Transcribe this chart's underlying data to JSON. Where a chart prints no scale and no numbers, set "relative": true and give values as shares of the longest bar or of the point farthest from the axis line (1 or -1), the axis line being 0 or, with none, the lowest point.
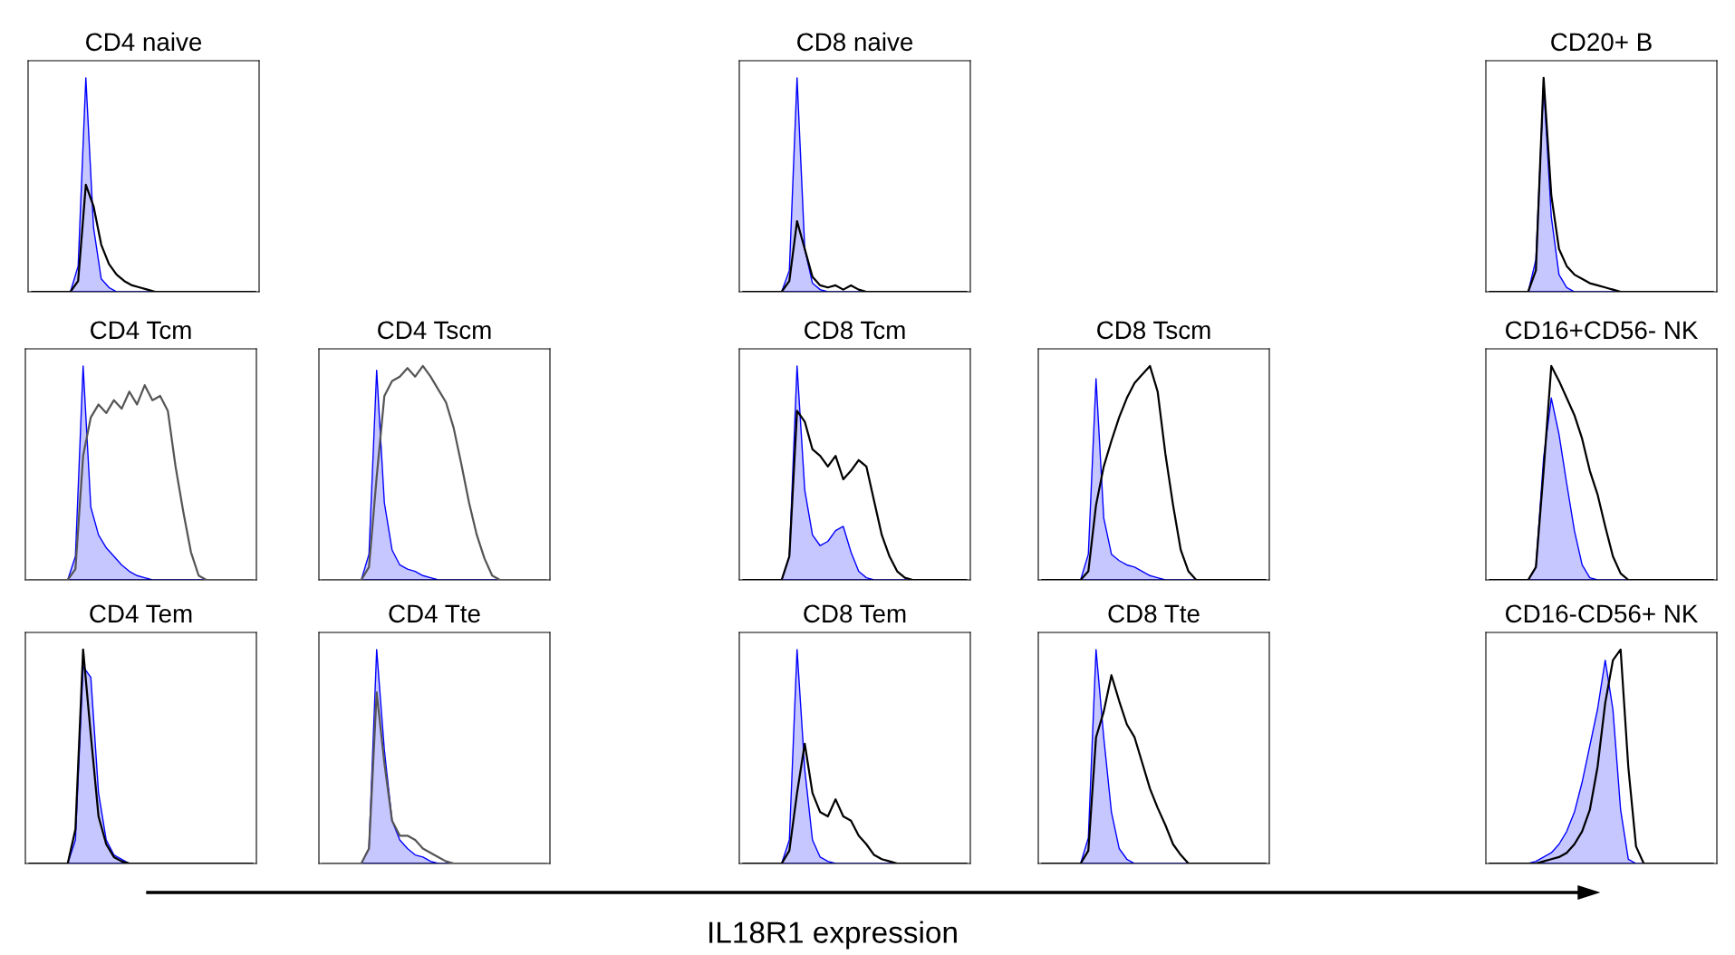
{
  "chart_data": [
    {
      "type": "line",
      "title": "CD4 naive",
      "relative": true,
      "tick_labels": false,
      "categories": [
        null,
        null,
        null,
        null,
        null,
        null,
        null,
        null,
        null,
        null,
        null,
        null,
        null,
        null,
        null,
        null,
        null,
        null,
        null,
        null,
        null,
        null,
        null,
        null,
        null,
        null,
        null,
        null,
        null,
        null
      ],
      "series": [
        {
          "type": "area",
          "color": "#0000ff",
          "values": [
            0,
            0,
            0,
            0,
            0,
            0,
            0.12,
            1.0,
            0.3,
            0.06,
            0.02,
            0,
            0,
            0,
            0,
            0,
            0,
            0,
            0,
            0,
            0,
            0,
            0,
            0,
            0,
            0,
            0,
            0,
            0,
            0
          ]
        },
        {
          "color": "#000000",
          "values": [
            0,
            0,
            0,
            0,
            0,
            0,
            0.05,
            0.5,
            0.4,
            0.22,
            0.13,
            0.08,
            0.05,
            0.03,
            0.02,
            0.01,
            0,
            0,
            0,
            0,
            0,
            0,
            0,
            0,
            0,
            0,
            0,
            0,
            0,
            0
          ]
        }
      ]
    },
    {
      "type": "line",
      "title": "CD8 naive",
      "relative": true,
      "tick_labels": false,
      "categories": [
        null,
        null,
        null,
        null,
        null,
        null,
        null,
        null,
        null,
        null,
        null,
        null,
        null,
        null,
        null,
        null,
        null,
        null,
        null,
        null,
        null,
        null,
        null,
        null,
        null,
        null,
        null,
        null,
        null,
        null
      ],
      "series": [
        {
          "type": "area",
          "color": "#0000ff",
          "values": [
            0,
            0,
            0,
            0,
            0,
            0,
            0.1,
            1.0,
            0.2,
            0.04,
            0.01,
            0,
            0,
            0,
            0,
            0,
            0,
            0,
            0,
            0,
            0,
            0,
            0,
            0,
            0,
            0,
            0,
            0,
            0,
            0
          ]
        },
        {
          "color": "#000000",
          "values": [
            0,
            0,
            0,
            0,
            0,
            0,
            0.05,
            0.33,
            0.2,
            0.07,
            0.03,
            0.02,
            0.03,
            0.01,
            0.03,
            0.01,
            0,
            0,
            0,
            0,
            0,
            0,
            0,
            0,
            0,
            0,
            0,
            0,
            0,
            0
          ]
        }
      ]
    },
    {
      "type": "line",
      "title": "CD20+ B",
      "relative": true,
      "tick_labels": false,
      "categories": [
        null,
        null,
        null,
        null,
        null,
        null,
        null,
        null,
        null,
        null,
        null,
        null,
        null,
        null,
        null,
        null,
        null,
        null,
        null,
        null,
        null,
        null,
        null,
        null,
        null,
        null,
        null,
        null,
        null,
        null
      ],
      "series": [
        {
          "type": "area",
          "color": "#0000ff",
          "values": [
            0,
            0,
            0,
            0,
            0,
            0,
            0.15,
            0.97,
            0.35,
            0.08,
            0.02,
            0,
            0,
            0,
            0,
            0,
            0,
            0,
            0,
            0,
            0,
            0,
            0,
            0,
            0,
            0,
            0,
            0,
            0,
            0
          ]
        },
        {
          "color": "#000000",
          "values": [
            0,
            0,
            0,
            0,
            0,
            0,
            0.1,
            1.0,
            0.45,
            0.2,
            0.12,
            0.08,
            0.06,
            0.04,
            0.03,
            0.02,
            0.01,
            0,
            0,
            0,
            0,
            0,
            0,
            0,
            0,
            0,
            0,
            0,
            0,
            0
          ]
        }
      ]
    },
    {
      "type": "line",
      "title": "CD4 Tcm",
      "relative": true,
      "tick_labels": false,
      "categories": [
        null,
        null,
        null,
        null,
        null,
        null,
        null,
        null,
        null,
        null,
        null,
        null,
        null,
        null,
        null,
        null,
        null,
        null,
        null,
        null,
        null,
        null,
        null,
        null,
        null,
        null,
        null,
        null,
        null,
        null
      ],
      "series": [
        {
          "type": "area",
          "color": "#0000ff",
          "values": [
            0,
            0,
            0,
            0,
            0,
            0,
            0.11,
            1.0,
            0.34,
            0.21,
            0.15,
            0.11,
            0.07,
            0.04,
            0.02,
            0.01,
            0,
            0,
            0,
            0,
            0,
            0,
            0,
            0,
            0,
            0,
            0,
            0,
            0,
            0
          ]
        },
        {
          "color": "#555555",
          "values": [
            0,
            0,
            0,
            0,
            0,
            0,
            0.05,
            0.58,
            0.76,
            0.82,
            0.78,
            0.84,
            0.8,
            0.88,
            0.82,
            0.91,
            0.84,
            0.86,
            0.79,
            0.53,
            0.32,
            0.13,
            0.02,
            0,
            0,
            0,
            0,
            0,
            0,
            0
          ]
        }
      ]
    },
    {
      "type": "line",
      "title": "CD4 Tscm",
      "relative": true,
      "tick_labels": false,
      "categories": [
        null,
        null,
        null,
        null,
        null,
        null,
        null,
        null,
        null,
        null,
        null,
        null,
        null,
        null,
        null,
        null,
        null,
        null,
        null,
        null,
        null,
        null,
        null,
        null,
        null,
        null,
        null,
        null,
        null,
        null
      ],
      "series": [
        {
          "type": "area",
          "color": "#0000ff",
          "values": [
            0,
            0,
            0,
            0,
            0,
            0,
            0.12,
            0.98,
            0.36,
            0.14,
            0.07,
            0.05,
            0.04,
            0.02,
            0.01,
            0,
            0,
            0,
            0,
            0,
            0,
            0,
            0,
            0,
            0,
            0,
            0,
            0,
            0,
            0
          ]
        },
        {
          "color": "#555555",
          "values": [
            0,
            0,
            0,
            0,
            0,
            0,
            0.06,
            0.48,
            0.86,
            0.93,
            0.95,
            0.99,
            0.95,
            1.0,
            0.95,
            0.89,
            0.83,
            0.71,
            0.54,
            0.36,
            0.21,
            0.1,
            0.02,
            0,
            0,
            0,
            0,
            0,
            0,
            0
          ]
        }
      ]
    },
    {
      "type": "line",
      "title": "CD8 Tcm",
      "relative": true,
      "tick_labels": false,
      "categories": [
        null,
        null,
        null,
        null,
        null,
        null,
        null,
        null,
        null,
        null,
        null,
        null,
        null,
        null,
        null,
        null,
        null,
        null,
        null,
        null,
        null,
        null,
        null,
        null,
        null,
        null,
        null,
        null,
        null,
        null
      ],
      "series": [
        {
          "type": "area",
          "color": "#0000ff",
          "values": [
            0,
            0,
            0,
            0,
            0,
            0,
            0.11,
            1.0,
            0.42,
            0.21,
            0.16,
            0.18,
            0.23,
            0.25,
            0.13,
            0.04,
            0.01,
            0,
            0,
            0,
            0,
            0,
            0,
            0,
            0,
            0,
            0,
            0,
            0,
            0
          ]
        },
        {
          "color": "#000000",
          "values": [
            0,
            0,
            0,
            0,
            0,
            0,
            0.11,
            0.79,
            0.74,
            0.61,
            0.58,
            0.53,
            0.58,
            0.47,
            0.51,
            0.56,
            0.53,
            0.37,
            0.21,
            0.11,
            0.04,
            0.01,
            0,
            0,
            0,
            0,
            0,
            0,
            0,
            0
          ]
        }
      ]
    },
    {
      "type": "line",
      "title": "CD8 Tscm",
      "relative": true,
      "tick_labels": false,
      "categories": [
        null,
        null,
        null,
        null,
        null,
        null,
        null,
        null,
        null,
        null,
        null,
        null,
        null,
        null,
        null,
        null,
        null,
        null,
        null,
        null,
        null,
        null,
        null,
        null,
        null,
        null,
        null,
        null,
        null,
        null
      ],
      "series": [
        {
          "type": "area",
          "color": "#0000ff",
          "values": [
            0,
            0,
            0,
            0,
            0,
            0,
            0.12,
            0.94,
            0.29,
            0.12,
            0.09,
            0.07,
            0.06,
            0.04,
            0.02,
            0.01,
            0,
            0,
            0,
            0,
            0,
            0,
            0,
            0,
            0,
            0,
            0,
            0,
            0,
            0
          ]
        },
        {
          "color": "#000000",
          "values": [
            0,
            0,
            0,
            0,
            0,
            0,
            0.04,
            0.35,
            0.53,
            0.65,
            0.76,
            0.85,
            0.92,
            0.96,
            1.0,
            0.88,
            0.59,
            0.35,
            0.14,
            0.04,
            0,
            0,
            0,
            0,
            0,
            0,
            0,
            0,
            0,
            0
          ]
        }
      ]
    },
    {
      "type": "line",
      "title": "CD16+CD56- NK",
      "relative": true,
      "tick_labels": false,
      "categories": [
        null,
        null,
        null,
        null,
        null,
        null,
        null,
        null,
        null,
        null,
        null,
        null,
        null,
        null,
        null,
        null,
        null,
        null,
        null,
        null,
        null,
        null,
        null,
        null,
        null,
        null,
        null,
        null,
        null,
        null
      ],
      "series": [
        {
          "type": "area",
          "color": "#0000ff",
          "values": [
            0,
            0,
            0,
            0,
            0,
            0,
            0.06,
            0.57,
            0.85,
            0.68,
            0.45,
            0.23,
            0.07,
            0.01,
            0,
            0,
            0,
            0,
            0,
            0,
            0,
            0,
            0,
            0,
            0,
            0,
            0,
            0,
            0,
            0
          ]
        },
        {
          "color": "#000000",
          "values": [
            0,
            0,
            0,
            0,
            0,
            0,
            0.06,
            0.51,
            1.0,
            0.93,
            0.85,
            0.77,
            0.66,
            0.51,
            0.4,
            0.25,
            0.11,
            0.03,
            0,
            0,
            0,
            0,
            0,
            0,
            0,
            0,
            0,
            0,
            0,
            0
          ]
        }
      ]
    },
    {
      "type": "line",
      "title": "CD4 Tem",
      "relative": true,
      "tick_labels": false,
      "categories": [
        null,
        null,
        null,
        null,
        null,
        null,
        null,
        null,
        null,
        null,
        null,
        null,
        null,
        null,
        null,
        null,
        null,
        null,
        null,
        null,
        null,
        null,
        null,
        null,
        null,
        null,
        null,
        null,
        null,
        null
      ],
      "series": [
        {
          "type": "area",
          "color": "#0000ff",
          "values": [
            0,
            0,
            0,
            0,
            0,
            0,
            0.11,
            0.92,
            0.87,
            0.33,
            0.11,
            0.04,
            0.02,
            0,
            0,
            0,
            0,
            0,
            0,
            0,
            0,
            0,
            0,
            0,
            0,
            0,
            0,
            0,
            0,
            0
          ]
        },
        {
          "color": "#000000",
          "values": [
            0,
            0,
            0,
            0,
            0,
            0,
            0.16,
            1.0,
            0.6,
            0.22,
            0.09,
            0.03,
            0.01,
            0,
            0,
            0,
            0,
            0,
            0,
            0,
            0,
            0,
            0,
            0,
            0,
            0,
            0,
            0,
            0,
            0
          ]
        }
      ]
    },
    {
      "type": "line",
      "title": "CD4 Tte",
      "relative": true,
      "tick_labels": false,
      "categories": [
        null,
        null,
        null,
        null,
        null,
        null,
        null,
        null,
        null,
        null,
        null,
        null,
        null,
        null,
        null,
        null,
        null,
        null,
        null,
        null,
        null,
        null,
        null,
        null,
        null,
        null,
        null,
        null,
        null,
        null
      ],
      "series": [
        {
          "type": "area",
          "color": "#0000ff",
          "values": [
            0,
            0,
            0,
            0,
            0,
            0,
            0.07,
            1.0,
            0.53,
            0.2,
            0.11,
            0.07,
            0.04,
            0.03,
            0.01,
            0,
            0,
            0,
            0,
            0,
            0,
            0,
            0,
            0,
            0,
            0,
            0,
            0,
            0,
            0
          ]
        },
        {
          "color": "#555555",
          "values": [
            0,
            0,
            0,
            0,
            0,
            0,
            0.07,
            0.8,
            0.47,
            0.2,
            0.13,
            0.13,
            0.11,
            0.07,
            0.05,
            0.03,
            0.01,
            0,
            0,
            0,
            0,
            0,
            0,
            0,
            0,
            0,
            0,
            0,
            0,
            0
          ]
        }
      ]
    },
    {
      "type": "line",
      "title": "CD8 Tem",
      "relative": true,
      "tick_labels": false,
      "categories": [
        null,
        null,
        null,
        null,
        null,
        null,
        null,
        null,
        null,
        null,
        null,
        null,
        null,
        null,
        null,
        null,
        null,
        null,
        null,
        null,
        null,
        null,
        null,
        null,
        null,
        null,
        null,
        null,
        null,
        null
      ],
      "series": [
        {
          "type": "area",
          "color": "#0000ff",
          "values": [
            0,
            0,
            0,
            0,
            0,
            0,
            0.11,
            1.0,
            0.44,
            0.11,
            0.03,
            0.01,
            0,
            0,
            0,
            0,
            0,
            0,
            0,
            0,
            0,
            0,
            0,
            0,
            0,
            0,
            0,
            0,
            0,
            0
          ]
        },
        {
          "color": "#000000",
          "values": [
            0,
            0,
            0,
            0,
            0,
            0,
            0.06,
            0.33,
            0.56,
            0.33,
            0.24,
            0.22,
            0.3,
            0.22,
            0.2,
            0.13,
            0.09,
            0.04,
            0.02,
            0.01,
            0,
            0,
            0,
            0,
            0,
            0,
            0,
            0,
            0,
            0
          ]
        }
      ]
    },
    {
      "type": "line",
      "title": "CD8 Tte",
      "relative": true,
      "tick_labels": false,
      "categories": [
        null,
        null,
        null,
        null,
        null,
        null,
        null,
        null,
        null,
        null,
        null,
        null,
        null,
        null,
        null,
        null,
        null,
        null,
        null,
        null,
        null,
        null,
        null,
        null,
        null,
        null,
        null,
        null,
        null,
        null
      ],
      "series": [
        {
          "type": "area",
          "color": "#0000ff",
          "values": [
            0,
            0,
            0,
            0,
            0,
            0,
            0.12,
            1.0,
            0.59,
            0.24,
            0.07,
            0.02,
            0,
            0,
            0,
            0,
            0,
            0,
            0,
            0,
            0,
            0,
            0,
            0,
            0,
            0,
            0,
            0,
            0,
            0
          ]
        },
        {
          "color": "#000000",
          "values": [
            0,
            0,
            0,
            0,
            0,
            0,
            0.06,
            0.59,
            0.71,
            0.88,
            0.76,
            0.65,
            0.59,
            0.47,
            0.35,
            0.26,
            0.18,
            0.09,
            0.04,
            0,
            0,
            0,
            0,
            0,
            0,
            0,
            0,
            0,
            0,
            0
          ]
        }
      ]
    },
    {
      "type": "line",
      "title": "CD16-CD56+ NK",
      "relative": true,
      "tick_labels": false,
      "categories": [
        null,
        null,
        null,
        null,
        null,
        null,
        null,
        null,
        null,
        null,
        null,
        null,
        null,
        null,
        null,
        null,
        null,
        null,
        null,
        null,
        null,
        null,
        null,
        null,
        null,
        null,
        null,
        null,
        null,
        null
      ],
      "series": [
        {
          "type": "area",
          "color": "#0000ff",
          "values": [
            0,
            0,
            0,
            0,
            0,
            0,
            0.01,
            0.03,
            0.05,
            0.09,
            0.15,
            0.24,
            0.38,
            0.55,
            0.72,
            0.95,
            0.72,
            0.25,
            0.02,
            0,
            0,
            0,
            0,
            0,
            0,
            0,
            0,
            0,
            0,
            0
          ]
        },
        {
          "color": "#000000",
          "values": [
            0,
            0,
            0,
            0,
            0,
            0,
            0,
            0.01,
            0.02,
            0.03,
            0.05,
            0.09,
            0.15,
            0.25,
            0.45,
            0.75,
            0.95,
            1.0,
            0.45,
            0.08,
            0,
            0,
            0,
            0,
            0,
            0,
            0,
            0,
            0,
            0
          ]
        }
      ]
    },
    {
      "type": "other",
      "annotations": [
        "IL18R1 expression"
      ]
    }
  ]
}
